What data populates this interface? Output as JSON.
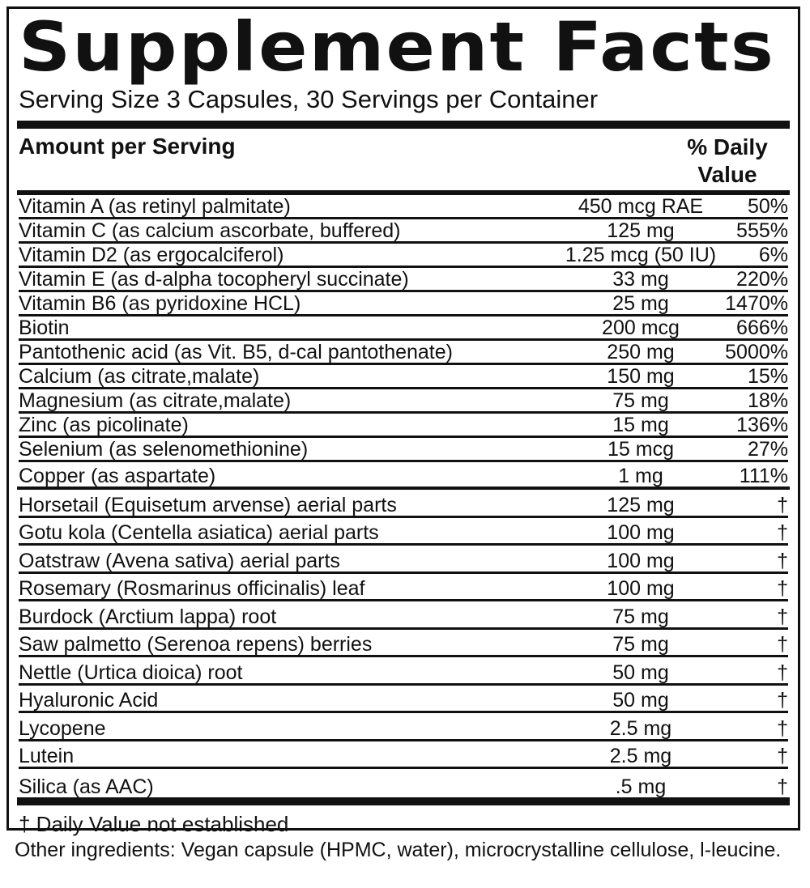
{
  "title": "Supplement Facts",
  "serving": "Serving Size 3 Capsules, 30 Servings per Container",
  "amount_label": "Amount per Serving",
  "dv_label_line1": "% Daily",
  "dv_label_line2": "Value",
  "vitamins": [
    {
      "name": "Vitamin A (as retinyl palmitate)",
      "amount": "450 mcg RAE",
      "dv": "50%"
    },
    {
      "name": "Vitamin C (as calcium ascorbate, buffered)",
      "amount": "125 mg",
      "dv": "555%"
    },
    {
      "name": "Vitamin D2 (as ergocalciferol)",
      "amount": "1.25 mcg (50 IU)",
      "dv": "6%"
    },
    {
      "name": "Vitamin E (as d-alpha tocopheryl succinate)",
      "amount": "33 mg",
      "dv": "220%"
    },
    {
      "name": "Vitamin B6 (as pyridoxine HCL)",
      "amount": "25 mg",
      "dv": "1470%"
    },
    {
      "name": "Biotin",
      "amount": "200 mcg",
      "dv": "666%"
    },
    {
      "name": "Pantothenic acid (as Vit. B5, d-cal pantothenate)",
      "amount": "250 mg",
      "dv": "5000%"
    },
    {
      "name": "Calcium (as citrate,malate)",
      "amount": "150 mg",
      "dv": "15%"
    },
    {
      "name": "Magnesium (as citrate,malate)",
      "amount": "75 mg",
      "dv": "18%"
    },
    {
      "name": "Zinc (as picolinate)",
      "amount": "15 mg",
      "dv": "136%"
    },
    {
      "name": "Selenium (as selenomethionine)",
      "amount": "15 mcg",
      "dv": "27%"
    },
    {
      "name": "Copper (as aspartate)",
      "amount": "1 mg",
      "dv": "111%"
    }
  ],
  "herbals": [
    {
      "name": "Horsetail (Equisetum arvense) aerial parts",
      "amount": "125 mg",
      "dv": "†"
    },
    {
      "name": "Gotu kola (Centella asiatica) aerial parts",
      "amount": "100 mg",
      "dv": "†"
    },
    {
      "name": "Oatstraw (Avena sativa) aerial parts",
      "amount": "100 mg",
      "dv": "†"
    },
    {
      "name": "Rosemary (Rosmarinus officinalis) leaf",
      "amount": "100 mg",
      "dv": "†"
    },
    {
      "name": "Burdock (Arctium lappa) root",
      "amount": "75 mg",
      "dv": "†"
    },
    {
      "name": "Saw palmetto (Serenoa repens) berries",
      "amount": "75 mg",
      "dv": "†"
    },
    {
      "name": "Nettle (Urtica dioica) root",
      "amount": "50 mg",
      "dv": "†"
    },
    {
      "name": "Hyaluronic Acid",
      "amount": "50 mg",
      "dv": "†"
    },
    {
      "name": "Lycopene",
      "amount": "2.5 mg",
      "dv": "†"
    },
    {
      "name": "Lutein",
      "amount": "2.5 mg",
      "dv": "†"
    },
    {
      "name": "Silica (as AAC)",
      "amount": ".5 mg",
      "dv": "†"
    }
  ],
  "footnote": "† Daily Value not established",
  "other_ingredients": "Other ingredients: Vegan capsule (HPMC, water), microcrystalline cellulose, l-leucine."
}
